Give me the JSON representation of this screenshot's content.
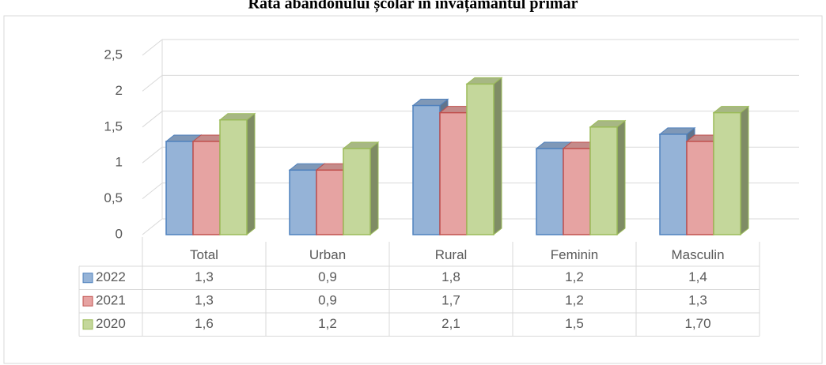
{
  "chart_data": {
    "type": "bar3d",
    "title": "Rata abandonului școlar în învățământul primar",
    "categories": [
      "Total",
      "Urban",
      "Rural",
      "Feminin",
      "Masculin"
    ],
    "series": [
      {
        "name": "2022",
        "color": "#95b3d7",
        "values": [
          1.3,
          0.9,
          1.8,
          1.2,
          1.4
        ],
        "value_labels": [
          "1,3",
          "0,9",
          "1,8",
          "1,2",
          "1,4"
        ]
      },
      {
        "name": "2021",
        "color": "#e6a3a2",
        "values": [
          1.3,
          0.9,
          1.7,
          1.2,
          1.3
        ],
        "value_labels": [
          "1,3",
          "0,9",
          "1,7",
          "1,2",
          "1,3"
        ]
      },
      {
        "name": "2020",
        "color": "#c4d79b",
        "values": [
          1.6,
          1.2,
          2.1,
          1.5,
          1.7
        ],
        "value_labels": [
          "1,6",
          "1,2",
          "2,1",
          "1,5",
          "1,70"
        ]
      }
    ],
    "ylim": [
      0,
      2.5
    ],
    "yticks": [
      0,
      {
        "value": 0.5,
        "label": "0,5"
      },
      1,
      {
        "value": 1.5,
        "label": "1,5"
      },
      2,
      {
        "value": 2.5,
        "label": "2,5"
      }
    ],
    "grid": true,
    "legend": "table"
  }
}
